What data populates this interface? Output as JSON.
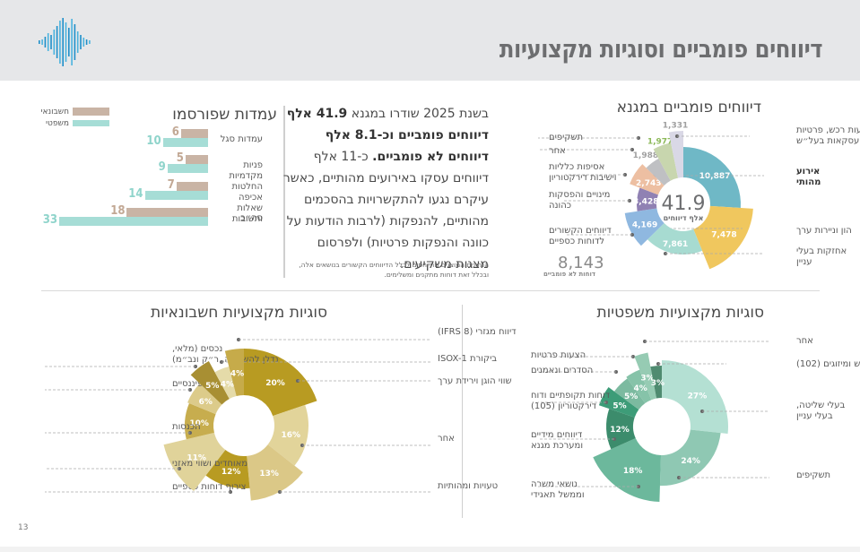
{
  "header": {
    "title": "דיווחים פומביים וסוגיות מקצועיות",
    "logo_icon": "soundwave-logo-icon"
  },
  "page_number": "13",
  "summary": {
    "intro": "בשנת 2025 שודרו במגנא ",
    "bold1": "41.9 אלף דיווחים פומביים וכ-8.1 אלף דיווחים לא פומביים.",
    "rest": " כ-11 אלף דיווחים עסקו באירועים מהותיים, כאשר עיקרם נגעו להתקשרויות בהסכמים מהותיים, להנפקות (לרבות הודעות על כוונה והנפקות פרטיות) ולפרסום מצגות משקיעים.",
    "note": "הנתונים המוצגים מתייחסים לכלל הדיווחים הקשורים בנושאים אלה, ובכלל זאת דוחות מתקנים ומשלימים."
  },
  "chart_data": [
    {
      "id": "position-papers",
      "type": "bar",
      "orientation": "horizontal",
      "title": "עמדות שפורסמו",
      "categories": [
        "עמדות סגל",
        "פניות מקדמיות",
        "החלטות אכיפה שאלות ותשובות",
        "סה״כ"
      ],
      "series": [
        {
          "name": "חשבונאי",
          "color": "#c9b4a5",
          "values": [
            6,
            5,
            7,
            18
          ]
        },
        {
          "name": "משפטי",
          "color": "#a6ddd6",
          "values": [
            10,
            9,
            14,
            33
          ]
        }
      ],
      "legend": "top-left",
      "xlim": [
        0,
        33
      ]
    },
    {
      "id": "public-reports",
      "type": "pie",
      "variant": "polar-donut",
      "title": "דיווחים פומביים במגנא",
      "center_value": "41.9",
      "center_label": "אלף דיווחים",
      "slices": [
        {
          "label": "אירוע מהותי",
          "value": 10887,
          "display": "10,887",
          "color": "#6fb8c6",
          "bold": true
        },
        {
          "label": "הון וניירות ערך",
          "value": 7478,
          "display": "7,478",
          "color": "#f0c75e"
        },
        {
          "label": "אחזקות בעלי עניין",
          "value": 7861,
          "display": "7,861",
          "color": "#a7dbd1"
        },
        {
          "label": "דיווחים הקשורים לדוחות כספיים",
          "value": 4169,
          "display": "4,169",
          "color": "#8fb8e0"
        },
        {
          "label": "מינויים והפסקות כהונה",
          "value": 3428,
          "display": "3,428",
          "color": "#9081b3"
        },
        {
          "label": "אסיפות כלליות וישיבות דירקטוריון",
          "value": 2743,
          "display": "2,743",
          "color": "#edbfa2"
        },
        {
          "label": "אחר",
          "value": 1988,
          "display": "1,988",
          "color": "#bfc0c3"
        },
        {
          "label": "תשקיפים",
          "value": 1977,
          "display": "1,977",
          "color": "#c8d6ae",
          "value_color": "#8dba5a"
        },
        {
          "label": "הצעות רכש, פרטיות ועסקאות בעל״ש",
          "value": 1331,
          "display": "1,331",
          "color": "#d9d8e6"
        }
      ],
      "extra": {
        "value": "8,143",
        "label": "דוחות לא פומביים"
      }
    },
    {
      "id": "accounting-topics",
      "type": "pie",
      "variant": "polar-donut",
      "title": "סוגיות מקצועיות חשבונאיות",
      "slices": [
        {
          "label": "שווי הוגן וירידת ערך",
          "value": 20,
          "display": "20%",
          "color": "#b89b22"
        },
        {
          "label": "אחר",
          "value": 16,
          "display": "16%",
          "color": "#e2d49a"
        },
        {
          "label": "טעויות ומהותיות",
          "value": 13,
          "display": "13%",
          "color": "#dbc887"
        },
        {
          "label": "צירוף דוחות כספיים",
          "value": 12,
          "display": "12%",
          "color": "#b89b22"
        },
        {
          "label": "מאוחדים ושווי מאזני",
          "value": 11,
          "display": "11%",
          "color": "#e0d39a"
        },
        {
          "label": "הכנסות",
          "value": 10,
          "display": "10%",
          "color": "#c7ad4e"
        },
        {
          "label": "מכשירים פיננסיים",
          "value": 6,
          "display": "6%",
          "color": "#dccb8a"
        },
        {
          "label": "נכסים (מלאי, נדלן להשקעה, ר״ק ונב״מ)",
          "value": 5,
          "display": "5%",
          "color": "#a88f33"
        },
        {
          "label": "ביקורת ISOX-1",
          "value": 4,
          "display": "4%",
          "color": "#e5dba9"
        },
        {
          "label": "דיווח מגזרי (IFRS 8)",
          "value": 4,
          "display": "4%",
          "color": "#c6ab4a"
        }
      ]
    },
    {
      "id": "legal-topics",
      "type": "pie",
      "variant": "polar-donut",
      "title": "סוגיות מקצועיות משפטיות",
      "slices": [
        {
          "label": "בעלי שליטה, בעלי עניין",
          "value": 27,
          "display": "27%",
          "color": "#b4e0d3"
        },
        {
          "label": "תשקיפים",
          "value": 24,
          "display": "24%",
          "color": "#8fc8b3"
        },
        {
          "label": "נושאי משרה וממשל תאגידי",
          "value": 18,
          "display": "18%",
          "color": "#6cb89c"
        },
        {
          "label": "דיווחים מידיים ומערכת מגנא",
          "value": 12,
          "display": "12%",
          "color": "#3c8c6c"
        },
        {
          "label": "דוחות תקופתיים ודוח דירקטוריון (105)",
          "value": 5,
          "display": "5%",
          "color": "#3d9c78"
        },
        {
          "label": "הסדרים ונאמנים",
          "value": 5,
          "display": "5%",
          "color": "#7cbaa0"
        },
        {
          "label": "הצעות פרטיות",
          "value": 4,
          "display": "4%",
          "color": "#86c3a9"
        },
        {
          "label": "אחר",
          "value": 3,
          "display": "3%",
          "color": "#96cbb3"
        },
        {
          "label": "הצעות רכש ומיזוגים (102)",
          "value": 3,
          "display": "3%",
          "color": "#4f8b70"
        }
      ]
    }
  ]
}
